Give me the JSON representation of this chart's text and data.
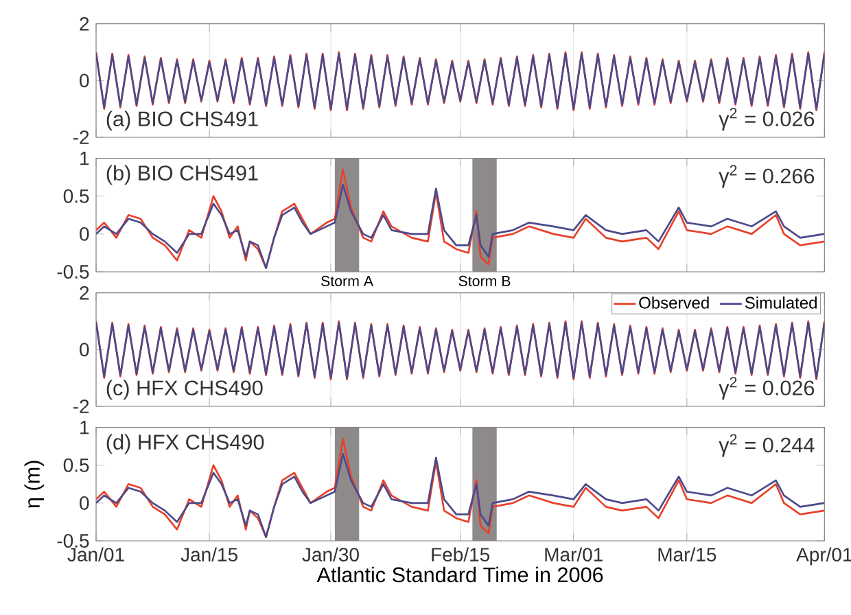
{
  "chart_data": [
    {
      "type": "line",
      "annotations": [
        "(a) BIO CHS491",
        "γ$^{2}$ = 0.026"
      ],
      "x": [
        "2006-01-01",
        "2006-01-02",
        "2006-01-03",
        "2006-01-04",
        "2006-01-05",
        "2006-01-06",
        "2006-01-07",
        "2006-01-08",
        "2006-01-09",
        "2006-01-10",
        "2006-01-11",
        "2006-01-12",
        "2006-01-13",
        "2006-01-14",
        "2006-01-15",
        "2006-01-16",
        "2006-01-17",
        "2006-01-18",
        "2006-01-19",
        "2006-01-20",
        "2006-01-21",
        "2006-01-22",
        "2006-01-23",
        "2006-01-24",
        "2006-01-25",
        "2006-01-26",
        "2006-01-27",
        "2006-01-28",
        "2006-01-29",
        "2006-01-30",
        "2006-01-31",
        "2006-02-01",
        "2006-02-02",
        "2006-02-03",
        "2006-02-04",
        "2006-02-05",
        "2006-02-06",
        "2006-02-07",
        "2006-02-08",
        "2006-02-09",
        "2006-02-10",
        "2006-02-11",
        "2006-02-12",
        "2006-02-13",
        "2006-02-14",
        "2006-02-15",
        "2006-02-16",
        "2006-02-17",
        "2006-02-18",
        "2006-02-19",
        "2006-02-20",
        "2006-02-21",
        "2006-02-22",
        "2006-02-23",
        "2006-02-24",
        "2006-02-25",
        "2006-02-26",
        "2006-02-27",
        "2006-02-28",
        "2006-03-01",
        "2006-03-02",
        "2006-03-03",
        "2006-03-04",
        "2006-03-05",
        "2006-03-06",
        "2006-03-07",
        "2006-03-08",
        "2006-03-09",
        "2006-03-10",
        "2006-03-11",
        "2006-03-12",
        "2006-03-13",
        "2006-03-14",
        "2006-03-15",
        "2006-03-16",
        "2006-03-17",
        "2006-03-18",
        "2006-03-19",
        "2006-03-20",
        "2006-03-21",
        "2006-03-22",
        "2006-03-23",
        "2006-03-24",
        "2006-03-25",
        "2006-03-26",
        "2006-03-27",
        "2006-03-28",
        "2006-03-29",
        "2006-03-30",
        "2006-03-31",
        "2006-04-01"
      ],
      "series": [
        {
          "color": "#e8402a",
          "values": [
            1.0,
            -1.0,
            0.95,
            -0.95,
            0.9,
            -0.9,
            0.85,
            -0.85,
            0.8,
            -0.8,
            0.75,
            -0.8,
            0.75,
            -0.75,
            0.7,
            -0.75,
            0.75,
            -0.8,
            0.8,
            -0.85,
            0.8,
            -0.9,
            0.85,
            -0.9,
            0.9,
            -0.95,
            0.95,
            -1.0,
            0.95,
            -1.05,
            1.0,
            -1.05,
            0.95,
            -1.0,
            0.9,
            -0.95,
            0.9,
            -0.9,
            0.85,
            -0.85,
            0.8,
            -0.85,
            0.75,
            -0.8,
            0.7,
            -0.75,
            0.7,
            -0.8,
            0.75,
            -0.85,
            0.8,
            -0.9,
            0.85,
            -0.9,
            0.9,
            -0.95,
            0.95,
            -1.0,
            1.0,
            -1.05,
            1.0,
            -1.0,
            0.95,
            -0.95,
            0.9,
            -0.9,
            0.85,
            -0.85,
            0.8,
            -0.85,
            0.75,
            -0.8,
            0.7,
            -0.75,
            0.7,
            -0.75,
            0.75,
            -0.8,
            0.8,
            -0.85,
            0.8,
            -0.9,
            0.85,
            -0.9,
            0.9,
            -0.95,
            0.95,
            -1.0,
            1.0,
            -1.05,
            1.0
          ]
        },
        {
          "color": "#4b4a8c",
          "values": [
            0.95,
            -0.95,
            0.9,
            -0.9,
            0.85,
            -0.85,
            0.8,
            -0.8,
            0.75,
            -0.75,
            0.7,
            -0.75,
            0.7,
            -0.7,
            0.65,
            -0.7,
            0.7,
            -0.75,
            0.75,
            -0.8,
            0.75,
            -0.85,
            0.8,
            -0.85,
            0.85,
            -0.9,
            0.9,
            -0.95,
            0.9,
            -1.0,
            0.95,
            -1.0,
            0.9,
            -0.95,
            0.85,
            -0.9,
            0.85,
            -0.85,
            0.8,
            -0.8,
            0.75,
            -0.8,
            0.7,
            -0.75,
            0.65,
            -0.7,
            0.65,
            -0.75,
            0.7,
            -0.8,
            0.75,
            -0.85,
            0.8,
            -0.85,
            0.85,
            -0.9,
            0.9,
            -0.95,
            0.95,
            -1.0,
            0.95,
            -0.95,
            0.9,
            -0.9,
            0.85,
            -0.85,
            0.8,
            -0.8,
            0.75,
            -0.8,
            0.7,
            -0.75,
            0.65,
            -0.7,
            0.65,
            -0.7,
            0.7,
            -0.75,
            0.75,
            -0.8,
            0.75,
            -0.85,
            0.8,
            -0.85,
            0.85,
            -0.9,
            0.9,
            -0.95,
            0.95,
            -1.0,
            0.95
          ]
        }
      ],
      "xlim": [
        "2006-01-01",
        "2006-04-01"
      ],
      "ylim": [
        -2,
        2
      ],
      "yticks": [
        -2,
        0,
        2
      ],
      "xticks": [
        {
          "value": "2006-01-01",
          "label": null
        },
        {
          "value": "2006-01-15",
          "label": null
        },
        {
          "value": "2006-01-30",
          "label": null
        },
        {
          "value": "2006-02-15",
          "label": null
        },
        {
          "value": "2006-03-01",
          "label": null
        },
        {
          "value": "2006-03-15",
          "label": null
        },
        {
          "value": "2006-04-01",
          "label": null
        }
      ],
      "tick_labels": "y",
      "grid": "x",
      "legend": false
    },
    {
      "type": "line",
      "annotations": [
        "(b) BIO CHS491",
        "γ$^{2}$ = 0.266"
      ],
      "x": [
        "2006-01-01",
        "2006-01-02",
        "2006-01-03T12:00",
        "2006-01-05",
        "2006-01-06T12:00",
        "2006-01-08",
        "2006-01-09T12:00",
        "2006-01-11",
        "2006-01-12T12:00",
        "2006-01-14",
        "2006-01-15T12:00",
        "2006-01-16T12:00",
        "2006-01-17T12:00",
        "2006-01-18T12:00",
        "2006-01-19T12:00",
        "2006-01-20",
        "2006-01-21",
        "2006-01-22",
        "2006-01-23",
        "2006-01-24",
        "2006-01-25T12:00",
        "2006-01-26T12:00",
        "2006-01-27T12:00",
        "2006-01-29T12:00",
        "2006-01-30T12:00",
        "2006-01-31T12:00",
        "2006-02-01T12:00",
        "2006-02-03",
        "2006-02-04",
        "2006-02-05T12:00",
        "2006-02-06T12:00",
        "2006-02-09",
        "2006-02-11",
        "2006-02-12",
        "2006-02-13",
        "2006-02-14T12:00",
        "2006-02-16",
        "2006-02-17",
        "2006-02-17T12:00",
        "2006-02-18T12:00",
        "2006-02-19",
        "2006-02-21T12:00",
        "2006-02-23T12:00",
        "2006-02-26T12:00",
        "2006-03-01",
        "2006-03-02T12:00",
        "2006-03-05",
        "2006-03-07",
        "2006-03-10",
        "2006-03-11T12:00",
        "2006-03-14",
        "2006-03-15",
        "2006-03-18",
        "2006-03-20",
        "2006-03-23",
        "2006-03-26",
        "2006-03-27",
        "2006-03-29",
        "2006-04-01"
      ],
      "series": [
        {
          "color": "#e8402a",
          "values": [
            0.05,
            0.15,
            -0.05,
            0.25,
            0.2,
            -0.05,
            -0.15,
            -0.35,
            0.05,
            -0.05,
            0.5,
            0.3,
            -0.05,
            0.1,
            -0.35,
            -0.1,
            -0.2,
            -0.45,
            -0.05,
            0.3,
            0.4,
            0.2,
            0,
            0.15,
            0.2,
            0.85,
            0.35,
            -0.05,
            -0.1,
            0.3,
            0.1,
            -0.05,
            -0.1,
            0.55,
            -0.1,
            -0.2,
            -0.25,
            0.3,
            -0.3,
            -0.4,
            -0.05,
            0,
            0.1,
            0,
            -0.05,
            0.2,
            -0.05,
            -0.1,
            -0.05,
            -0.2,
            0.3,
            0.05,
            0,
            0.1,
            0,
            0.25,
            0,
            -0.15,
            -0.1
          ]
        },
        {
          "color": "#4b4a8c",
          "values": [
            0,
            0.1,
            0,
            0.2,
            0.15,
            0,
            -0.1,
            -0.25,
            0,
            0,
            0.4,
            0.25,
            0,
            0.05,
            -0.3,
            -0.1,
            -0.15,
            -0.45,
            -0.05,
            0.25,
            0.35,
            0.15,
            0,
            0.1,
            0.15,
            0.65,
            0.3,
            0,
            -0.05,
            0.25,
            0.05,
            0,
            0,
            0.6,
            0.05,
            -0.15,
            -0.15,
            0.25,
            -0.15,
            -0.3,
            0,
            0.05,
            0.15,
            0.1,
            0.05,
            0.25,
            0.05,
            0,
            0.05,
            -0.1,
            0.35,
            0.15,
            0.1,
            0.2,
            0.1,
            0.3,
            0.1,
            -0.05,
            0
          ]
        }
      ],
      "bands": [
        {
          "axis": "x",
          "from": "2006-01-30T12:00",
          "to": "2006-02-02T12:00",
          "label": "Storm A",
          "color": "#8f8a8a"
        },
        {
          "axis": "x",
          "from": "2006-02-16T12:00",
          "to": "2006-02-19T12:00",
          "label": "Storm B",
          "color": "#8f8a8a"
        }
      ],
      "xlim": [
        "2006-01-01",
        "2006-04-01"
      ],
      "ylim": [
        -0.5,
        1
      ],
      "yticks": [
        -0.5,
        0,
        0.5,
        1
      ],
      "xticks": [
        {
          "value": "2006-01-01",
          "label": null
        },
        {
          "value": "2006-01-15",
          "label": null
        },
        {
          "value": "2006-01-30",
          "label": null
        },
        {
          "value": "2006-02-15",
          "label": null
        },
        {
          "value": "2006-03-01",
          "label": null
        },
        {
          "value": "2006-03-15",
          "label": null
        },
        {
          "value": "2006-04-01",
          "label": null
        }
      ],
      "tick_labels": "y",
      "grid": "x",
      "legend": false
    },
    {
      "type": "line",
      "annotations": [
        "(c) HFX CHS490",
        "γ$^{2}$ = 0.026"
      ],
      "x": [
        "2006-01-01",
        "2006-01-02",
        "2006-01-03",
        "2006-01-04",
        "2006-01-05",
        "2006-01-06",
        "2006-01-07",
        "2006-01-08",
        "2006-01-09",
        "2006-01-10",
        "2006-01-11",
        "2006-01-12",
        "2006-01-13",
        "2006-01-14",
        "2006-01-15",
        "2006-01-16",
        "2006-01-17",
        "2006-01-18",
        "2006-01-19",
        "2006-01-20",
        "2006-01-21",
        "2006-01-22",
        "2006-01-23",
        "2006-01-24",
        "2006-01-25",
        "2006-01-26",
        "2006-01-27",
        "2006-01-28",
        "2006-01-29",
        "2006-01-30",
        "2006-01-31",
        "2006-02-01",
        "2006-02-02",
        "2006-02-03",
        "2006-02-04",
        "2006-02-05",
        "2006-02-06",
        "2006-02-07",
        "2006-02-08",
        "2006-02-09",
        "2006-02-10",
        "2006-02-11",
        "2006-02-12",
        "2006-02-13",
        "2006-02-14",
        "2006-02-15",
        "2006-02-16",
        "2006-02-17",
        "2006-02-18",
        "2006-02-19",
        "2006-02-20",
        "2006-02-21",
        "2006-02-22",
        "2006-02-23",
        "2006-02-24",
        "2006-02-25",
        "2006-02-26",
        "2006-02-27",
        "2006-02-28",
        "2006-03-01",
        "2006-03-02",
        "2006-03-03",
        "2006-03-04",
        "2006-03-05",
        "2006-03-06",
        "2006-03-07",
        "2006-03-08",
        "2006-03-09",
        "2006-03-10",
        "2006-03-11",
        "2006-03-12",
        "2006-03-13",
        "2006-03-14",
        "2006-03-15",
        "2006-03-16",
        "2006-03-17",
        "2006-03-18",
        "2006-03-19",
        "2006-03-20",
        "2006-03-21",
        "2006-03-22",
        "2006-03-23",
        "2006-03-24",
        "2006-03-25",
        "2006-03-26",
        "2006-03-27",
        "2006-03-28",
        "2006-03-29",
        "2006-03-30",
        "2006-03-31",
        "2006-04-01"
      ],
      "series": [
        {
          "name": "Observed",
          "color": "#e8402a",
          "values": [
            1.0,
            -1.0,
            0.95,
            -0.95,
            0.9,
            -0.9,
            0.85,
            -0.85,
            0.8,
            -0.8,
            0.75,
            -0.8,
            0.75,
            -0.75,
            0.7,
            -0.75,
            0.75,
            -0.8,
            0.8,
            -0.85,
            0.8,
            -0.9,
            0.85,
            -0.9,
            0.9,
            -0.95,
            0.95,
            -1.0,
            0.95,
            -1.05,
            1.0,
            -1.05,
            0.95,
            -1.0,
            0.9,
            -0.95,
            0.9,
            -0.9,
            0.85,
            -0.85,
            0.8,
            -0.85,
            0.75,
            -0.8,
            0.7,
            -0.75,
            0.7,
            -0.8,
            0.75,
            -0.85,
            0.8,
            -0.9,
            0.85,
            -0.9,
            0.9,
            -0.95,
            0.95,
            -1.0,
            1.0,
            -1.05,
            1.0,
            -1.0,
            0.95,
            -0.95,
            0.9,
            -0.9,
            0.85,
            -0.85,
            0.8,
            -0.85,
            0.75,
            -0.8,
            0.7,
            -0.75,
            0.7,
            -0.75,
            0.75,
            -0.8,
            0.8,
            -0.85,
            0.8,
            -0.9,
            0.85,
            -0.9,
            0.9,
            -0.95,
            0.95,
            -1.0,
            1.0,
            -1.05,
            1.0
          ]
        },
        {
          "name": "Simulated",
          "color": "#4b4a8c",
          "values": [
            0.95,
            -0.95,
            0.9,
            -0.9,
            0.85,
            -0.85,
            0.8,
            -0.8,
            0.75,
            -0.75,
            0.7,
            -0.75,
            0.7,
            -0.7,
            0.65,
            -0.7,
            0.7,
            -0.75,
            0.75,
            -0.8,
            0.75,
            -0.85,
            0.8,
            -0.85,
            0.85,
            -0.9,
            0.9,
            -0.95,
            0.9,
            -1.0,
            0.95,
            -1.0,
            0.9,
            -0.95,
            0.85,
            -0.9,
            0.85,
            -0.85,
            0.8,
            -0.8,
            0.75,
            -0.8,
            0.7,
            -0.75,
            0.65,
            -0.7,
            0.65,
            -0.75,
            0.7,
            -0.8,
            0.75,
            -0.85,
            0.8,
            -0.85,
            0.85,
            -0.9,
            0.9,
            -0.95,
            0.95,
            -1.0,
            0.95,
            -0.95,
            0.9,
            -0.9,
            0.85,
            -0.85,
            0.8,
            -0.8,
            0.75,
            -0.8,
            0.7,
            -0.75,
            0.65,
            -0.7,
            0.65,
            -0.7,
            0.7,
            -0.75,
            0.75,
            -0.8,
            0.75,
            -0.85,
            0.8,
            -0.85,
            0.85,
            -0.9,
            0.9,
            -0.95,
            0.95,
            -1.0,
            0.95
          ]
        }
      ],
      "xlim": [
        "2006-01-01",
        "2006-04-01"
      ],
      "ylim": [
        -2,
        2
      ],
      "yticks": [
        -2,
        0,
        2
      ],
      "xticks": [
        {
          "value": "2006-01-01",
          "label": null
        },
        {
          "value": "2006-01-15",
          "label": null
        },
        {
          "value": "2006-01-30",
          "label": null
        },
        {
          "value": "2006-02-15",
          "label": null
        },
        {
          "value": "2006-03-01",
          "label": null
        },
        {
          "value": "2006-03-15",
          "label": null
        },
        {
          "value": "2006-04-01",
          "label": null
        }
      ],
      "tick_labels": "y",
      "grid": "x",
      "legend": "top right"
    },
    {
      "type": "line",
      "annotations": [
        "(d) HFX CHS490",
        "γ$^{2}$ = 0.244"
      ],
      "xlabel": "Atlantic Standard Time in 2006",
      "ylabel": "η (m)",
      "x": [
        "2006-01-01",
        "2006-01-02",
        "2006-01-03T12:00",
        "2006-01-05",
        "2006-01-06T12:00",
        "2006-01-08",
        "2006-01-09T12:00",
        "2006-01-11",
        "2006-01-12T12:00",
        "2006-01-14",
        "2006-01-15T12:00",
        "2006-01-16T12:00",
        "2006-01-17T12:00",
        "2006-01-18T12:00",
        "2006-01-19T12:00",
        "2006-01-20",
        "2006-01-21",
        "2006-01-22",
        "2006-01-23",
        "2006-01-24",
        "2006-01-25T12:00",
        "2006-01-26T12:00",
        "2006-01-27T12:00",
        "2006-01-29T12:00",
        "2006-01-30T12:00",
        "2006-01-31T12:00",
        "2006-02-01T12:00",
        "2006-02-03",
        "2006-02-04",
        "2006-02-05T12:00",
        "2006-02-06T12:00",
        "2006-02-09",
        "2006-02-11",
        "2006-02-12",
        "2006-02-13",
        "2006-02-14T12:00",
        "2006-02-16",
        "2006-02-17",
        "2006-02-17T12:00",
        "2006-02-18T12:00",
        "2006-02-19",
        "2006-02-21T12:00",
        "2006-02-23T12:00",
        "2006-02-26T12:00",
        "2006-03-01",
        "2006-03-02T12:00",
        "2006-03-05",
        "2006-03-07",
        "2006-03-10",
        "2006-03-11T12:00",
        "2006-03-14",
        "2006-03-15",
        "2006-03-18",
        "2006-03-20",
        "2006-03-23",
        "2006-03-26",
        "2006-03-27",
        "2006-03-29",
        "2006-04-01"
      ],
      "series": [
        {
          "color": "#e8402a",
          "values": [
            0.05,
            0.15,
            -0.05,
            0.25,
            0.2,
            -0.05,
            -0.15,
            -0.35,
            0.05,
            -0.05,
            0.5,
            0.3,
            -0.05,
            0.1,
            -0.35,
            -0.1,
            -0.2,
            -0.45,
            -0.05,
            0.3,
            0.4,
            0.2,
            0,
            0.15,
            0.2,
            0.85,
            0.35,
            -0.05,
            -0.1,
            0.3,
            0.1,
            -0.05,
            -0.1,
            0.55,
            -0.1,
            -0.2,
            -0.25,
            0.3,
            -0.3,
            -0.4,
            -0.05,
            0,
            0.1,
            0,
            -0.05,
            0.2,
            -0.05,
            -0.1,
            -0.05,
            -0.2,
            0.3,
            0.05,
            0,
            0.1,
            0,
            0.25,
            0,
            -0.15,
            -0.1
          ]
        },
        {
          "color": "#4b4a8c",
          "values": [
            0,
            0.1,
            0,
            0.2,
            0.15,
            0,
            -0.1,
            -0.25,
            0,
            0,
            0.4,
            0.25,
            0,
            0.05,
            -0.3,
            -0.1,
            -0.15,
            -0.45,
            -0.05,
            0.25,
            0.35,
            0.15,
            0,
            0.1,
            0.15,
            0.65,
            0.3,
            0,
            -0.05,
            0.25,
            0.05,
            0,
            0,
            0.6,
            0.05,
            -0.15,
            -0.15,
            0.25,
            -0.15,
            -0.3,
            0,
            0.05,
            0.15,
            0.1,
            0.05,
            0.25,
            0.05,
            0,
            0.05,
            -0.1,
            0.35,
            0.15,
            0.1,
            0.2,
            0.1,
            0.3,
            0.1,
            -0.05,
            0
          ]
        }
      ],
      "bands": [
        {
          "axis": "x",
          "from": "2006-01-30T12:00",
          "to": "2006-02-02T12:00",
          "color": "#8f8a8a"
        },
        {
          "axis": "x",
          "from": "2006-02-16T12:00",
          "to": "2006-02-19T12:00",
          "color": "#8f8a8a"
        }
      ],
      "xlim": [
        "2006-01-01",
        "2006-04-01"
      ],
      "ylim": [
        -0.5,
        1
      ],
      "yticks": [
        -0.5,
        0,
        0.5,
        1
      ],
      "xticks": [
        {
          "value": "2006-01-01",
          "label": "Jan/01"
        },
        {
          "value": "2006-01-15",
          "label": "Jan/15"
        },
        {
          "value": "2006-01-30",
          "label": "Jan/30"
        },
        {
          "value": "2006-02-15",
          "label": "Feb/15"
        },
        {
          "value": "2006-03-01",
          "label": "Mar/01"
        },
        {
          "value": "2006-03-15",
          "label": "Mar/15"
        },
        {
          "value": "2006-04-01",
          "label": "Apr/01"
        }
      ],
      "grid": "x",
      "legend": false
    }
  ]
}
